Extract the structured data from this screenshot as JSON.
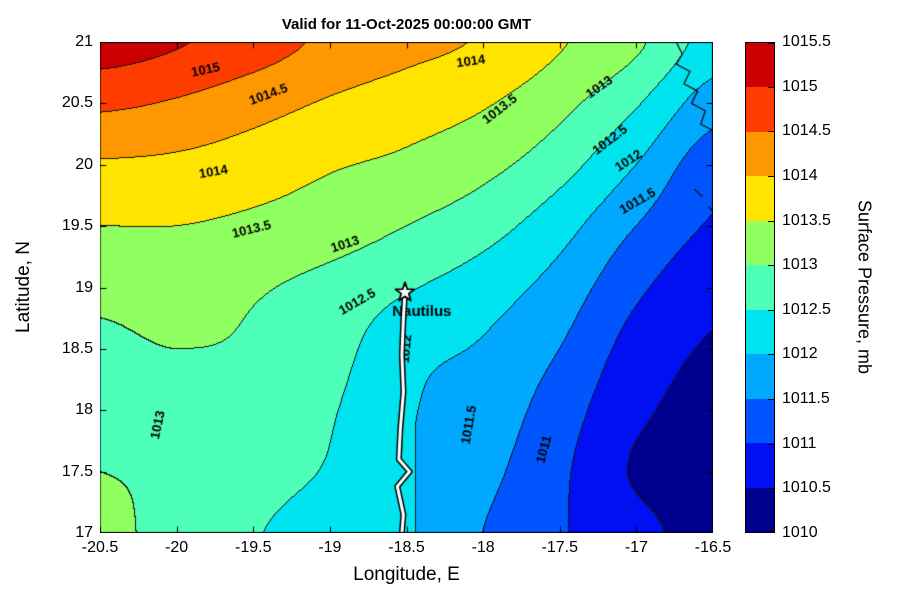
{
  "title": "Valid for 11-Oct-2025 00:00:00 GMT",
  "axes": {
    "xlabel": "Longitude, E",
    "ylabel": "Latitude, N",
    "xlim": [
      -20.5,
      -16.5
    ],
    "ylim": [
      17,
      21
    ],
    "x_tick_values": [
      -20.5,
      -20,
      -19.5,
      -19,
      -18.5,
      -18,
      -17.5,
      -17,
      -16.5
    ],
    "x_tick_labels": [
      "-20.5",
      "-20",
      "-19.5",
      "-19",
      "-18.5",
      "-18",
      "-17.5",
      "-17",
      "-16.5"
    ],
    "y_tick_values": [
      17,
      17.5,
      18,
      18.5,
      19,
      19.5,
      20,
      20.5,
      21
    ],
    "y_tick_labels": [
      "17",
      "17.5",
      "18",
      "18.5",
      "19",
      "19.5",
      "20",
      "20.5",
      "21"
    ]
  },
  "colorbar": {
    "label": "Surface Pressure, mb",
    "min": 1010,
    "max": 1015.5,
    "tick_values": [
      1010,
      1010.5,
      1011,
      1011.5,
      1012,
      1012.5,
      1013,
      1013.5,
      1014,
      1014.5,
      1015,
      1015.5
    ],
    "tick_labels": [
      "1010",
      "1010.5",
      "1011",
      "1011.5",
      "1012",
      "1012.5",
      "1013",
      "1013.5",
      "1014",
      "1014.5",
      "1015",
      "1015.5"
    ],
    "band_colors_low_to_high": [
      "#000090",
      "#0010f0",
      "#0055ff",
      "#00a8ff",
      "#00e4f0",
      "#4dffb8",
      "#90ff60",
      "#ffe400",
      "#ff9800",
      "#ff3c00",
      "#cc0000"
    ]
  },
  "chart_data": {
    "type": "heatmap",
    "style": "filled_contour",
    "title": "Valid for 11-Oct-2025 00:00:00 GMT",
    "xlabel": "Longitude, E",
    "ylabel": "Latitude, N",
    "xlim": [
      -20.5,
      -16.5
    ],
    "ylim": [
      17,
      21
    ],
    "zlabel": "Surface Pressure, mb",
    "zlim": [
      1010,
      1015.5
    ],
    "contour_interval_mb": 0.5,
    "levels_mb": [
      1010.5,
      1011,
      1011.5,
      1012,
      1012.5,
      1013,
      1013.5,
      1014,
      1014.5,
      1015
    ],
    "grid": {
      "lon": [
        -20.5,
        -20,
        -19.5,
        -19,
        -18.5,
        -18,
        -17.5,
        -17,
        -16.5
      ],
      "lat": [
        21,
        20.5,
        20,
        19.5,
        19,
        18.5,
        18,
        17.5,
        17
      ],
      "pressure_mb": [
        [
          1015.25,
          1015.05,
          1014.75,
          1014.4,
          1014.15,
          1013.95,
          1013.55,
          1013.1,
          1012.3
        ],
        [
          1014.6,
          1014.45,
          1014.2,
          1013.95,
          1013.75,
          1013.55,
          1013.15,
          1012.55,
          1011.75
        ],
        [
          1013.95,
          1013.9,
          1013.75,
          1013.55,
          1013.4,
          1013.15,
          1012.7,
          1012.0,
          1011.2
        ],
        [
          1013.5,
          1013.5,
          1013.4,
          1013.25,
          1013.0,
          1012.7,
          1012.2,
          1011.5,
          1010.95
        ],
        [
          1013.1,
          1013.15,
          1013.05,
          1012.85,
          1012.55,
          1012.25,
          1011.8,
          1011.1,
          1010.65
        ],
        [
          1012.95,
          1013.0,
          1012.95,
          1012.7,
          1012.15,
          1011.95,
          1011.5,
          1010.8,
          1010.45
        ],
        [
          1012.95,
          1012.95,
          1012.85,
          1012.55,
          1012.05,
          1011.8,
          1011.25,
          1010.6,
          1010.35
        ],
        [
          1013.0,
          1012.95,
          1012.75,
          1012.45,
          1012.05,
          1011.65,
          1011.1,
          1010.45,
          1010.3
        ],
        [
          1013.05,
          1012.9,
          1012.55,
          1012.2,
          1012.05,
          1011.5,
          1011.05,
          1010.65,
          1010.3
        ]
      ]
    },
    "contour_labels": [
      {
        "text": "1015",
        "lon": -19.81,
        "lat": 20.77,
        "rot": -12
      },
      {
        "text": "1014.5",
        "lon": -19.4,
        "lat": 20.57,
        "rot": -20
      },
      {
        "text": "1014",
        "lon": -18.08,
        "lat": 20.84,
        "rot": -8
      },
      {
        "text": "1014",
        "lon": -19.76,
        "lat": 19.94,
        "rot": -10
      },
      {
        "text": "1013.5",
        "lon": -19.51,
        "lat": 19.47,
        "rot": -14
      },
      {
        "text": "1013.5",
        "lon": -17.89,
        "lat": 20.45,
        "rot": -38
      },
      {
        "text": "1013",
        "lon": -18.9,
        "lat": 19.35,
        "rot": -18
      },
      {
        "text": "1013",
        "lon": -17.24,
        "lat": 20.63,
        "rot": -35
      },
      {
        "text": "1013",
        "lon": -20.12,
        "lat": 17.88,
        "rot": -78
      },
      {
        "text": "1012.5",
        "lon": -18.82,
        "lat": 18.88,
        "rot": -30
      },
      {
        "text": "1012.5",
        "lon": -17.17,
        "lat": 20.2,
        "rot": -38
      },
      {
        "text": "1012",
        "lon": -17.05,
        "lat": 20.03,
        "rot": -33
      },
      {
        "text": "1012",
        "lon": -18.5,
        "lat": 18.5,
        "rot": -85
      },
      {
        "text": "1011.5",
        "lon": -16.99,
        "lat": 19.7,
        "rot": -30
      },
      {
        "text": "1011.5",
        "lon": -18.09,
        "lat": 17.88,
        "rot": -80
      },
      {
        "text": "1011",
        "lon": -17.6,
        "lat": 17.68,
        "rot": -75
      }
    ],
    "track": {
      "name": "Nautilus",
      "label_lonlat": [
        -18.4,
        18.8
      ],
      "star_lonlat": [
        -18.51,
        18.96
      ],
      "points_lonlat": [
        [
          -18.51,
          18.96
        ],
        [
          -18.52,
          18.75
        ],
        [
          -18.53,
          18.45
        ],
        [
          -18.52,
          18.15
        ],
        [
          -18.54,
          17.85
        ],
        [
          -18.55,
          17.6
        ],
        [
          -18.48,
          17.5
        ],
        [
          -18.56,
          17.38
        ],
        [
          -18.52,
          17.15
        ],
        [
          -18.53,
          17.0
        ]
      ]
    },
    "coastlines": [
      [
        [
          -16.74,
          21.0
        ],
        [
          -16.7,
          20.9
        ],
        [
          -16.74,
          20.82
        ],
        [
          -16.65,
          20.76
        ],
        [
          -16.69,
          20.66
        ],
        [
          -16.6,
          20.6
        ],
        [
          -16.64,
          20.5
        ],
        [
          -16.55,
          20.44
        ],
        [
          -16.58,
          20.33
        ],
        [
          -16.5,
          20.28
        ]
      ],
      [
        [
          -16.62,
          19.8
        ],
        [
          -16.57,
          19.74
        ]
      ],
      [
        [
          -16.53,
          19.66
        ],
        [
          -16.5,
          19.62
        ]
      ]
    ]
  }
}
